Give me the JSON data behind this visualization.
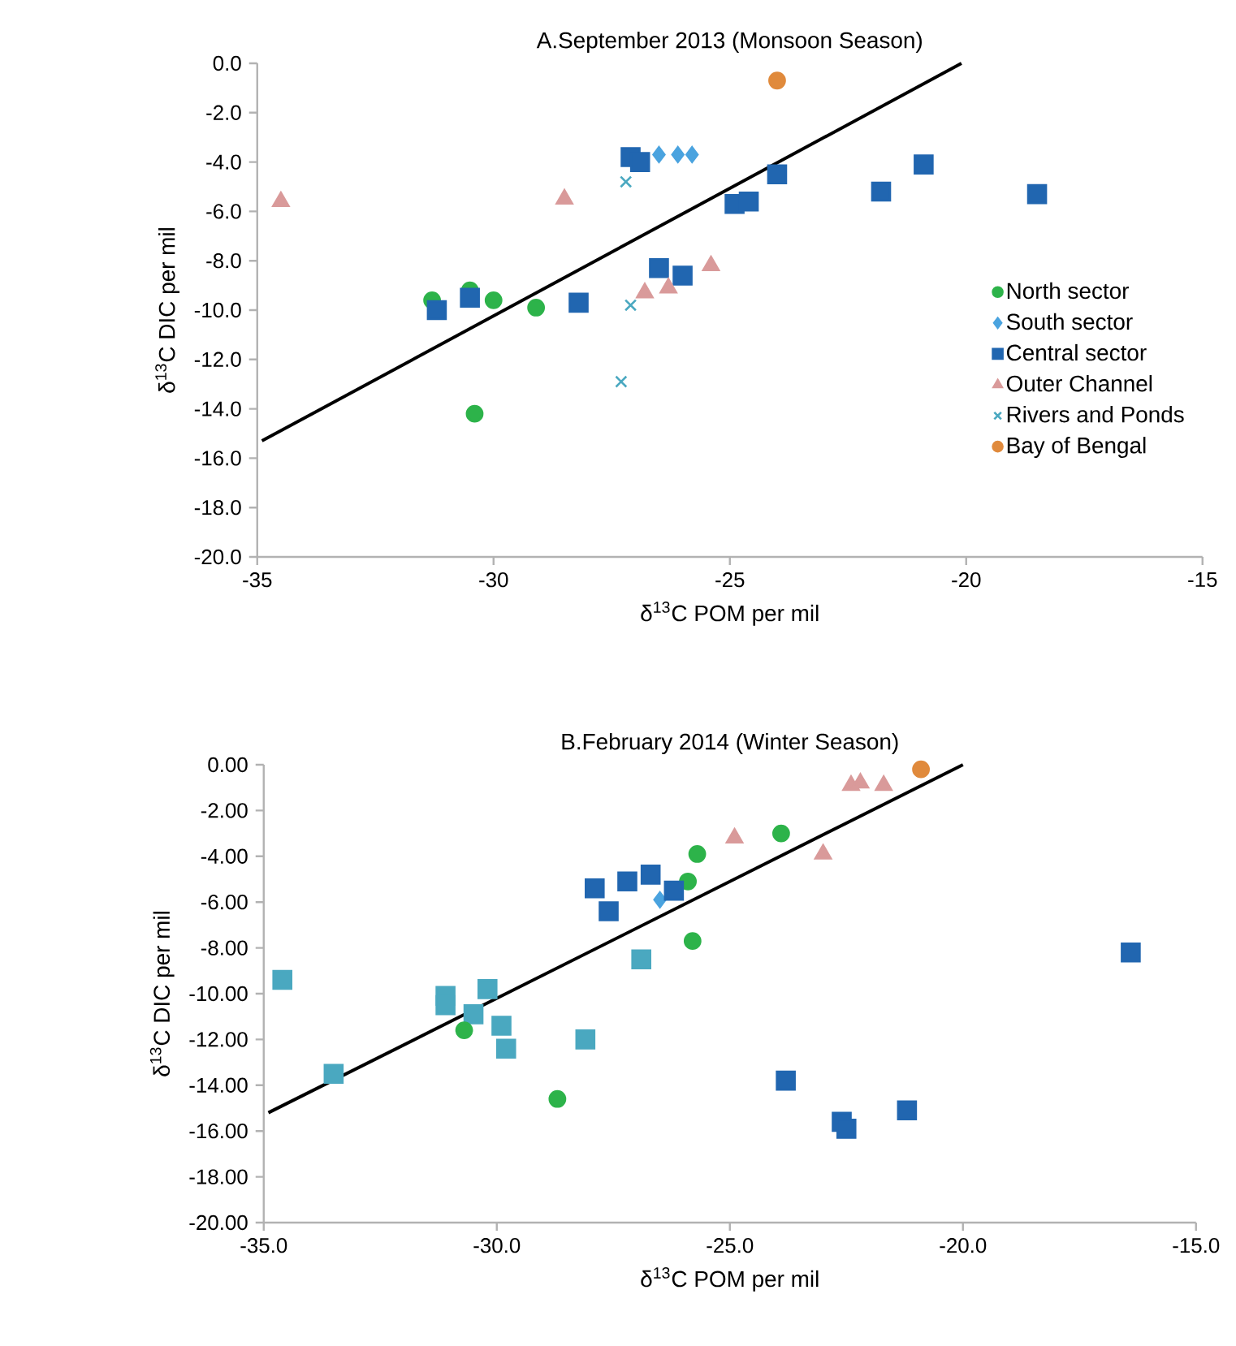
{
  "chart_data": [
    {
      "type": "scatter",
      "title": "A.September 2013 (Monsoon Season)",
      "xlabel": "δ$^{13}$C POM per mil",
      "ylabel": "δ$^{13}$C DIC per mil",
      "xlim": [
        -35,
        -15
      ],
      "ylim": [
        -20,
        0
      ],
      "xticks": [
        -35,
        -30,
        -25,
        -20,
        -15
      ],
      "yticks": [
        {
          "value": 0,
          "label": "0.0"
        },
        {
          "value": -2,
          "label": "-2.0"
        },
        {
          "value": -4,
          "label": "-4.0"
        },
        {
          "value": -6,
          "label": "-6.0"
        },
        {
          "value": -8,
          "label": "-8.0"
        },
        {
          "value": -10,
          "label": "-10.0"
        },
        {
          "value": -12,
          "label": "-12.0"
        },
        {
          "value": -14,
          "label": "-14.0"
        },
        {
          "value": -16,
          "label": "-16.0"
        },
        {
          "value": -18,
          "label": "-18.0"
        },
        {
          "value": -20,
          "label": "-20.0"
        }
      ],
      "legend": "right",
      "series": [
        {
          "name": "North sector",
          "color": "#2db34a",
          "marker": "circle",
          "x": [
            -31.3,
            -30.5,
            -30.0,
            -29.1,
            -30.4
          ],
          "values": [
            -9.6,
            -9.2,
            -9.6,
            -9.9,
            -14.2
          ]
        },
        {
          "name": "South sector",
          "color": "#4aa3df",
          "marker": "diamond",
          "x": [
            -26.5,
            -26.1,
            -25.8
          ],
          "values": [
            -3.7,
            -3.7,
            -3.7
          ]
        },
        {
          "name": "Central sector",
          "color": "#2166b0",
          "marker": "square",
          "x": [
            -27.1,
            -26.9,
            -31.2,
            -30.5,
            -28.2,
            -26.5,
            -26.0,
            -24.9,
            -24.6,
            -24.0,
            -21.8,
            -20.9,
            -18.5
          ],
          "values": [
            -3.8,
            -4.0,
            -10.0,
            -9.5,
            -9.7,
            -8.3,
            -8.6,
            -5.7,
            -5.6,
            -4.5,
            -5.2,
            -4.1,
            -5.3
          ]
        },
        {
          "name": "Outer Channel",
          "color": "#d99a9a",
          "marker": "triangle",
          "x": [
            -34.5,
            -28.5,
            -26.8,
            -26.3,
            -25.4
          ],
          "values": [
            -5.6,
            -5.5,
            -9.3,
            -9.1,
            -8.2
          ]
        },
        {
          "name": "Rivers and Ponds",
          "color": "#4aa8c0",
          "marker": "cross",
          "x": [
            -27.2,
            -27.1,
            -27.3
          ],
          "values": [
            -4.8,
            -9.8,
            -12.9
          ]
        },
        {
          "name": "Bay of Bengal",
          "color": "#e08a3c",
          "marker": "circle",
          "x": [
            -24.0
          ],
          "values": [
            -0.7
          ]
        },
        {
          "type": "line",
          "color": "#000000",
          "marker": "none",
          "x": [
            -34.9,
            -20.1
          ],
          "values": [
            -15.3,
            0
          ]
        }
      ]
    },
    {
      "type": "scatter",
      "title": "B.February 2014 (Winter Season)",
      "xlabel": "δ$^{13}$C POM per mil",
      "ylabel": "δ$^{13}$C DIC per mil",
      "xlim": [
        -35,
        -15
      ],
      "ylim": [
        -20,
        0
      ],
      "xticks": [
        {
          "value": -35,
          "label": "-35.0"
        },
        {
          "value": -30,
          "label": "-30.0"
        },
        {
          "value": -25,
          "label": "-25.0"
        },
        {
          "value": -20,
          "label": "-20.0"
        },
        {
          "value": -15,
          "label": "-15.0"
        }
      ],
      "yticks": [
        {
          "value": 0,
          "label": "0.00"
        },
        {
          "value": -2,
          "label": "-2.00"
        },
        {
          "value": -4,
          "label": "-4.00"
        },
        {
          "value": -6,
          "label": "-6.00"
        },
        {
          "value": -8,
          "label": "-8.00"
        },
        {
          "value": -10,
          "label": "-10.00"
        },
        {
          "value": -12,
          "label": "-12.00"
        },
        {
          "value": -14,
          "label": "-14.00"
        },
        {
          "value": -16,
          "label": "-16.00"
        },
        {
          "value": -18,
          "label": "-18.00"
        },
        {
          "value": -20,
          "label": "-20.00"
        }
      ],
      "series": [
        {
          "color": "#4aa8c0",
          "marker": "square",
          "x": [
            -34.6,
            -33.5,
            -31.1,
            -31.1,
            -30.5,
            -30.2,
            -29.9,
            -29.8,
            -28.1,
            -26.9
          ],
          "values": [
            -9.4,
            -13.5,
            -10.1,
            -10.5,
            -10.9,
            -9.8,
            -11.4,
            -12.4,
            -12.0,
            -8.5
          ]
        },
        {
          "color": "#2db34a",
          "marker": "circle",
          "x": [
            -30.7,
            -28.7,
            -25.7,
            -25.9,
            -25.8,
            -23.9
          ],
          "values": [
            -11.6,
            -14.6,
            -3.9,
            -5.1,
            -7.7,
            -3.0
          ]
        },
        {
          "color": "#4aa3df",
          "marker": "diamond",
          "x": [
            -26.5
          ],
          "values": [
            -5.9
          ]
        },
        {
          "color": "#2166b0",
          "marker": "square",
          "x": [
            -27.9,
            -27.6,
            -27.2,
            -26.7,
            -26.2,
            -23.8,
            -22.6,
            -22.5,
            -21.2,
            -16.4
          ],
          "values": [
            -5.4,
            -6.4,
            -5.1,
            -4.8,
            -5.5,
            -13.8,
            -15.6,
            -15.9,
            -15.1,
            -8.2
          ]
        },
        {
          "color": "#d99a9a",
          "marker": "triangle",
          "x": [
            -24.9,
            -23.0,
            -22.4,
            -22.2,
            -21.7
          ],
          "values": [
            -3.2,
            -3.9,
            -0.9,
            -0.8,
            -0.9
          ]
        },
        {
          "color": "#e08a3c",
          "marker": "circle",
          "x": [
            -20.9
          ],
          "values": [
            -0.2
          ]
        },
        {
          "type": "line",
          "color": "#000000",
          "marker": "none",
          "x": [
            -34.9,
            -20.0
          ],
          "values": [
            -15.2,
            0
          ]
        }
      ]
    }
  ]
}
